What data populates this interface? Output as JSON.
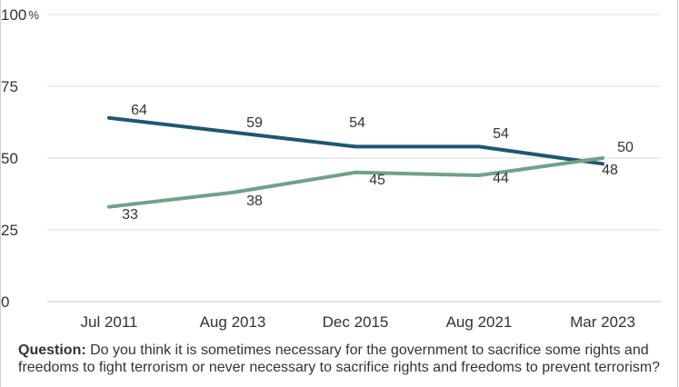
{
  "chart_data": {
    "type": "line",
    "categories": [
      "Jul 2011",
      "Aug 2013",
      "Dec 2015",
      "Aug 2021",
      "Mar 2023"
    ],
    "series": [
      {
        "values": [
          64,
          59,
          54,
          54,
          48
        ],
        "color": "#1f5673"
      },
      {
        "values": [
          33,
          38,
          45,
          44,
          50
        ],
        "color": "#6fa287"
      }
    ],
    "y_ticks": [
      "0",
      "25",
      "50",
      "75",
      "100"
    ],
    "y_unit": "%",
    "ylim": [
      0,
      100
    ],
    "grid": true,
    "legend": "none"
  },
  "question": {
    "label": "Question:",
    "text": "Do you think it is sometimes necessary for the government to sacrifice some rights and freedoms to fight terrorism or never necessary to sacrifice rights and freedoms to prevent terrorism?"
  }
}
